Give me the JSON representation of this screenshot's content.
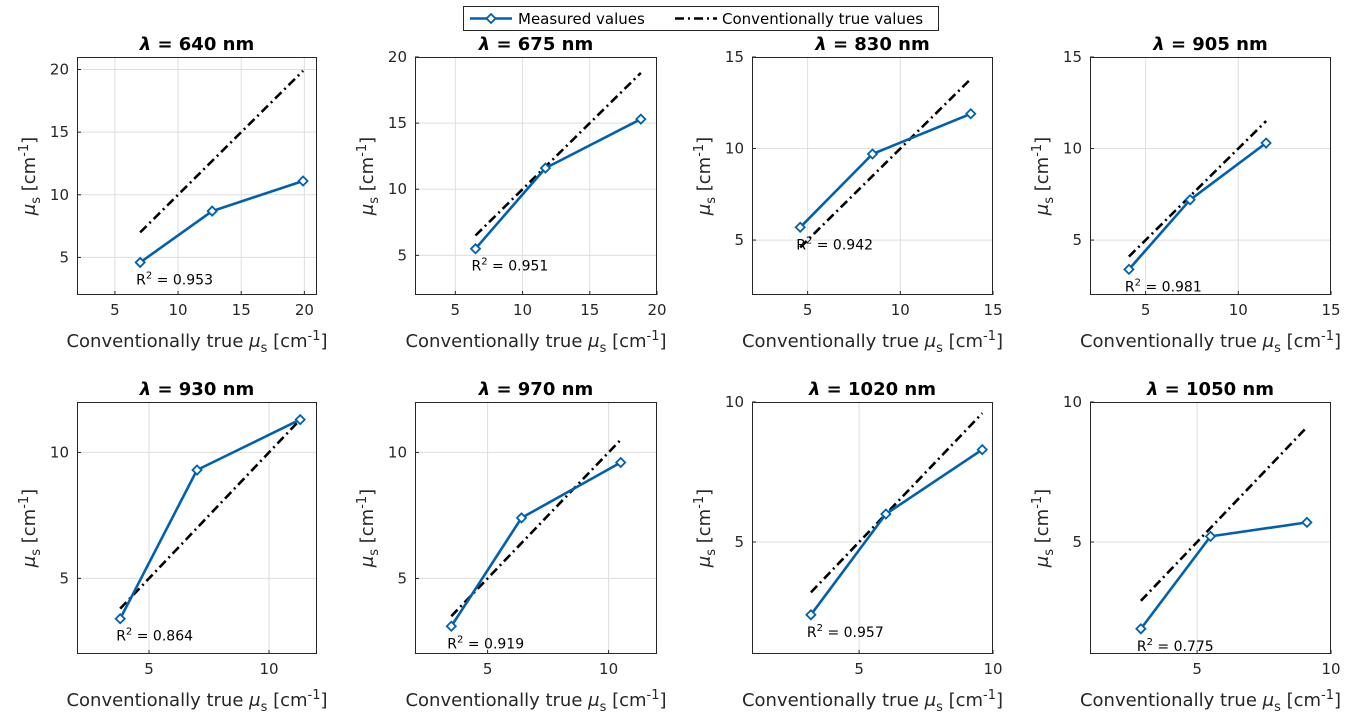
{
  "legend": {
    "measured": "Measured values",
    "true": "Conventionally true values",
    "measured_color": "#0060b0",
    "true_color": "#000000"
  },
  "chart_data": [
    {
      "type": "line",
      "title": "λ = 640 nm",
      "xlabel": "Conventionally true μs [cm-1]",
      "ylabel": "μs [cm-1]",
      "xlim": [
        2,
        21
      ],
      "ylim": [
        2,
        21
      ],
      "xticks": [
        5,
        10,
        15,
        20
      ],
      "yticks": [
        5,
        10,
        15,
        20
      ],
      "r2_label": "R2 = 0.953",
      "r2_value": 0.953,
      "series": [
        {
          "name": "Measured values",
          "x": [
            7.0,
            12.7,
            19.9
          ],
          "y": [
            4.6,
            8.7,
            11.1
          ]
        },
        {
          "name": "Conventionally true values",
          "x": [
            7.0,
            19.9
          ],
          "y": [
            7.0,
            19.9
          ]
        }
      ]
    },
    {
      "type": "line",
      "title": "λ = 675 nm",
      "xlabel": "Conventionally true μs [cm-1]",
      "ylabel": "μs [cm-1]",
      "xlim": [
        2,
        20
      ],
      "ylim": [
        2,
        20
      ],
      "xticks": [
        5,
        10,
        15,
        20
      ],
      "yticks": [
        5,
        10,
        15,
        20
      ],
      "r2_label": "R2 = 0.951",
      "r2_value": 0.951,
      "series": [
        {
          "name": "Measured values",
          "x": [
            6.5,
            11.7,
            18.8
          ],
          "y": [
            5.5,
            11.6,
            15.3
          ]
        },
        {
          "name": "Conventionally true values",
          "x": [
            6.5,
            18.8
          ],
          "y": [
            6.5,
            18.8
          ]
        }
      ]
    },
    {
      "type": "line",
      "title": "λ = 830 nm",
      "xlabel": "Conventionally true μs [cm-1]",
      "ylabel": "μs [cm-1]",
      "xlim": [
        2,
        15
      ],
      "ylim": [
        2,
        15
      ],
      "xticks": [
        5,
        10,
        15
      ],
      "yticks": [
        5,
        10,
        15
      ],
      "r2_label": "R2 = 0.942",
      "r2_value": 0.942,
      "series": [
        {
          "name": "Measured values",
          "x": [
            4.6,
            8.5,
            13.8
          ],
          "y": [
            5.7,
            9.7,
            11.9
          ]
        },
        {
          "name": "Conventionally true values",
          "x": [
            4.6,
            13.8
          ],
          "y": [
            4.6,
            13.8
          ]
        }
      ]
    },
    {
      "type": "line",
      "title": "λ = 905 nm",
      "xlabel": "Conventionally true μs [cm-1]",
      "ylabel": "μs [cm-1]",
      "xlim": [
        2,
        15
      ],
      "ylim": [
        2,
        15
      ],
      "xticks": [
        5,
        10,
        15
      ],
      "yticks": [
        5,
        10,
        15
      ],
      "r2_label": "R2 = 0.981",
      "r2_value": 0.981,
      "series": [
        {
          "name": "Measured values",
          "x": [
            4.1,
            7.4,
            11.5
          ],
          "y": [
            3.4,
            7.2,
            10.3
          ]
        },
        {
          "name": "Conventionally true values",
          "x": [
            4.1,
            11.5
          ],
          "y": [
            4.1,
            11.5
          ]
        }
      ]
    },
    {
      "type": "line",
      "title": "λ = 930 nm",
      "xlabel": "Conventionally true μs [cm-1]",
      "ylabel": "μs [cm-1]",
      "xlim": [
        2,
        12
      ],
      "ylim": [
        2,
        12
      ],
      "xticks": [
        5,
        10
      ],
      "yticks": [
        5,
        10
      ],
      "r2_label": "R2 = 0.864",
      "r2_value": 0.864,
      "series": [
        {
          "name": "Measured values",
          "x": [
            3.8,
            7.0,
            11.3
          ],
          "y": [
            3.4,
            9.3,
            11.3
          ]
        },
        {
          "name": "Conventionally true values",
          "x": [
            3.8,
            11.3
          ],
          "y": [
            3.8,
            11.3
          ]
        }
      ]
    },
    {
      "type": "line",
      "title": "λ = 970 nm",
      "xlabel": "Conventionally true μs [cm-1]",
      "ylabel": "μs [cm-1]",
      "xlim": [
        2,
        12
      ],
      "ylim": [
        2,
        12
      ],
      "xticks": [
        5,
        10
      ],
      "yticks": [
        5,
        10
      ],
      "r2_label": "R2 = 0.919",
      "r2_value": 0.919,
      "series": [
        {
          "name": "Measured values",
          "x": [
            3.5,
            6.4,
            10.5
          ],
          "y": [
            3.1,
            7.4,
            9.6
          ]
        },
        {
          "name": "Conventionally true values",
          "x": [
            3.5,
            10.5
          ],
          "y": [
            3.5,
            10.5
          ]
        }
      ]
    },
    {
      "type": "line",
      "title": "λ = 1020 nm",
      "xlabel": "Conventionally true μs [cm-1]",
      "ylabel": "μs [cm-1]",
      "xlim": [
        1,
        10
      ],
      "ylim": [
        1,
        10
      ],
      "xticks": [
        5,
        10
      ],
      "yticks": [
        5,
        10
      ],
      "r2_label": "R2 = 0.957",
      "r2_value": 0.957,
      "series": [
        {
          "name": "Measured values",
          "x": [
            3.2,
            6.0,
            9.6
          ],
          "y": [
            2.4,
            6.0,
            8.3
          ]
        },
        {
          "name": "Conventionally true values",
          "x": [
            3.2,
            9.6
          ],
          "y": [
            3.2,
            9.6
          ]
        }
      ]
    },
    {
      "type": "line",
      "title": "λ = 1050 nm",
      "xlabel": "Conventionally true μs [cm-1]",
      "ylabel": "μs [cm-1]",
      "xlim": [
        1,
        10
      ],
      "ylim": [
        1,
        10
      ],
      "xticks": [
        5,
        10
      ],
      "yticks": [
        5,
        10
      ],
      "r2_label": "R2 = 0.775",
      "r2_value": 0.775,
      "series": [
        {
          "name": "Measured values",
          "x": [
            2.9,
            5.5,
            9.1
          ],
          "y": [
            1.9,
            5.2,
            5.7
          ]
        },
        {
          "name": "Conventionally true values",
          "x": [
            2.9,
            9.1
          ],
          "y": [
            2.9,
            9.1
          ]
        }
      ]
    }
  ]
}
